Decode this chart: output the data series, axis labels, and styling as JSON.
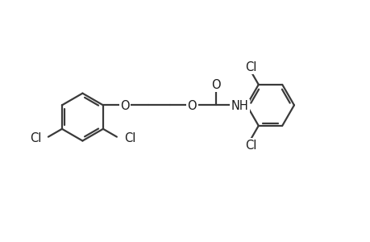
{
  "bg_color": "#ffffff",
  "line_color": "#3a3a3a",
  "text_color": "#1a1a1a",
  "line_width": 1.6,
  "font_size": 10.5,
  "figsize": [
    4.6,
    3.0
  ],
  "dpi": 100,
  "xlim": [
    0,
    9.2
  ],
  "ylim": [
    0,
    6.0
  ]
}
